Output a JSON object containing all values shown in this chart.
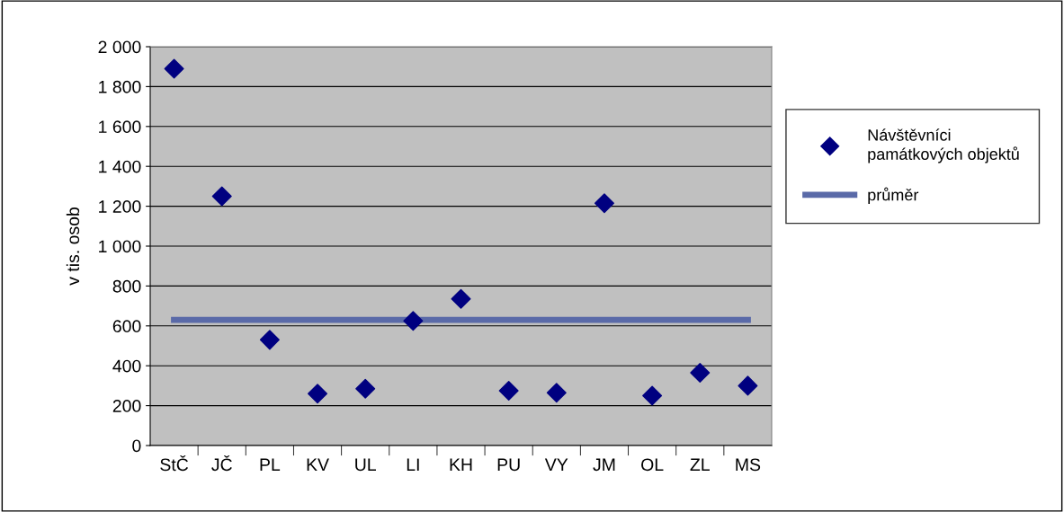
{
  "chart_data": {
    "type": "scatter",
    "ylabel": "v tis. osob",
    "categories": [
      "StČ",
      "JČ",
      "PL",
      "KV",
      "UL",
      "LI",
      "KH",
      "PU",
      "VY",
      "JM",
      "OL",
      "ZL",
      "MS"
    ],
    "series": [
      {
        "name": "Návštěvníci památkových objektů",
        "color": "#000080",
        "marker": "diamond",
        "values": [
          1890,
          1250,
          530,
          260,
          285,
          625,
          735,
          275,
          265,
          1215,
          250,
          365,
          300
        ]
      },
      {
        "name": "průměr",
        "type": "line",
        "color": "#5a6aa8",
        "marker": "none",
        "line_style": "solid",
        "values": [
          630,
          630,
          630,
          630,
          630,
          630,
          630,
          630,
          630,
          630,
          630,
          630,
          630
        ]
      }
    ],
    "ylim": [
      0,
      2000
    ],
    "yticks": [
      0,
      {
        "value": 200,
        "label": "200"
      },
      {
        "value": 400,
        "label": "400"
      },
      {
        "value": 600,
        "label": "600"
      },
      {
        "value": 800,
        "label": "800"
      },
      {
        "value": 1000,
        "label": "1 000"
      },
      {
        "value": 1200,
        "label": "1 200"
      },
      {
        "value": 1400,
        "label": "1 400"
      },
      {
        "value": 1600,
        "label": "1 600"
      },
      {
        "value": 1800,
        "label": "1 800"
      },
      {
        "value": 2000,
        "label": "2 000"
      }
    ],
    "grid": "y",
    "legend": "right"
  }
}
